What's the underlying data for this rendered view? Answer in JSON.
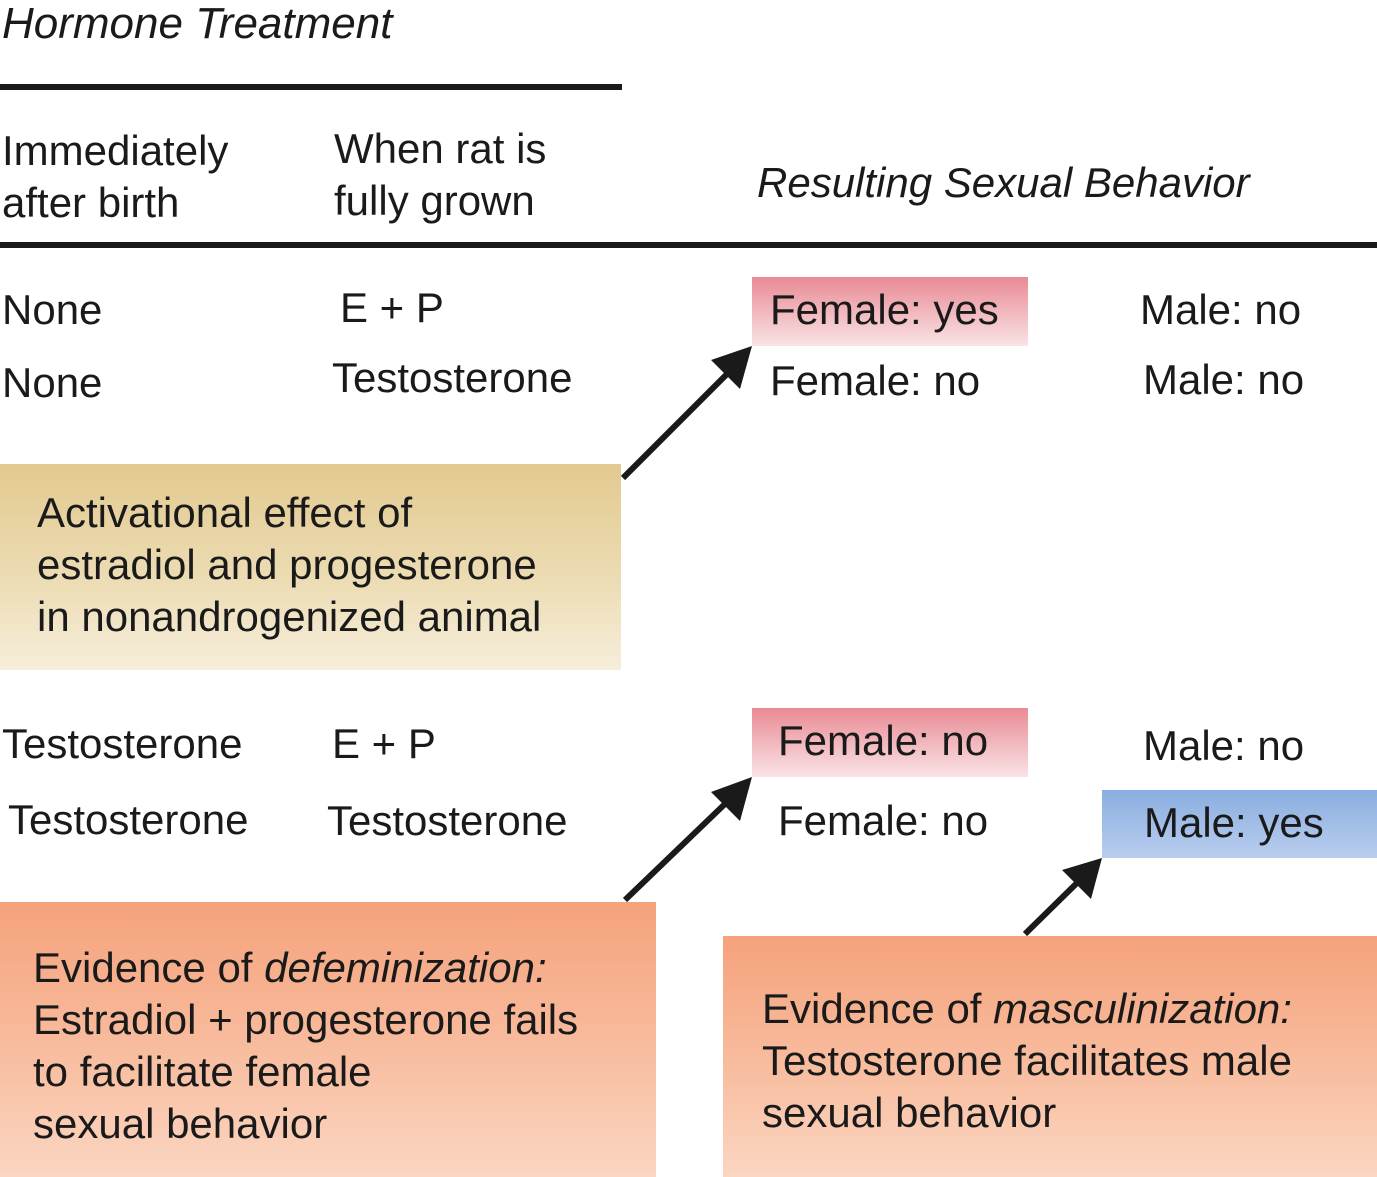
{
  "header": {
    "title": "Hormone Treatment",
    "col1": [
      "Immediately",
      "after birth"
    ],
    "col2": [
      "When rat is",
      "fully grown"
    ],
    "result": "Resulting Sexual Behavior"
  },
  "rows": [
    {
      "birth": "None",
      "grown": "E + P",
      "female": "Female: yes",
      "male": "Male: no"
    },
    {
      "birth": "None",
      "grown": "Testosterone",
      "female": "Female: no",
      "male": "Male: no"
    },
    {
      "birth": "Testosterone",
      "grown": "E + P",
      "female": "Female: no",
      "male": "Male: no"
    },
    {
      "birth": "Testosterone",
      "grown": "Testosterone",
      "female": "Female: no",
      "male": "Male: yes"
    }
  ],
  "callouts": {
    "activational": {
      "lines": [
        "Activational effect of",
        "estradiol and progesterone",
        "in nonandrogenized animal"
      ]
    },
    "defeminization": {
      "intro": "Evidence of ",
      "term": "defeminization:",
      "lines": [
        "Estradiol + progesterone fails",
        "to facilitate female",
        "sexual behavior"
      ]
    },
    "masculinization": {
      "intro": "Evidence of ",
      "term": "masculinization:",
      "lines": [
        "Testosterone facilitates male",
        "sexual behavior"
      ]
    }
  },
  "colors": {
    "female_highlight": "#e98a94",
    "male_highlight": "#8aaee0",
    "activational_box": "#e2c98f",
    "evidence_box": "#f5a27c",
    "ink": "#1a1a1a"
  }
}
